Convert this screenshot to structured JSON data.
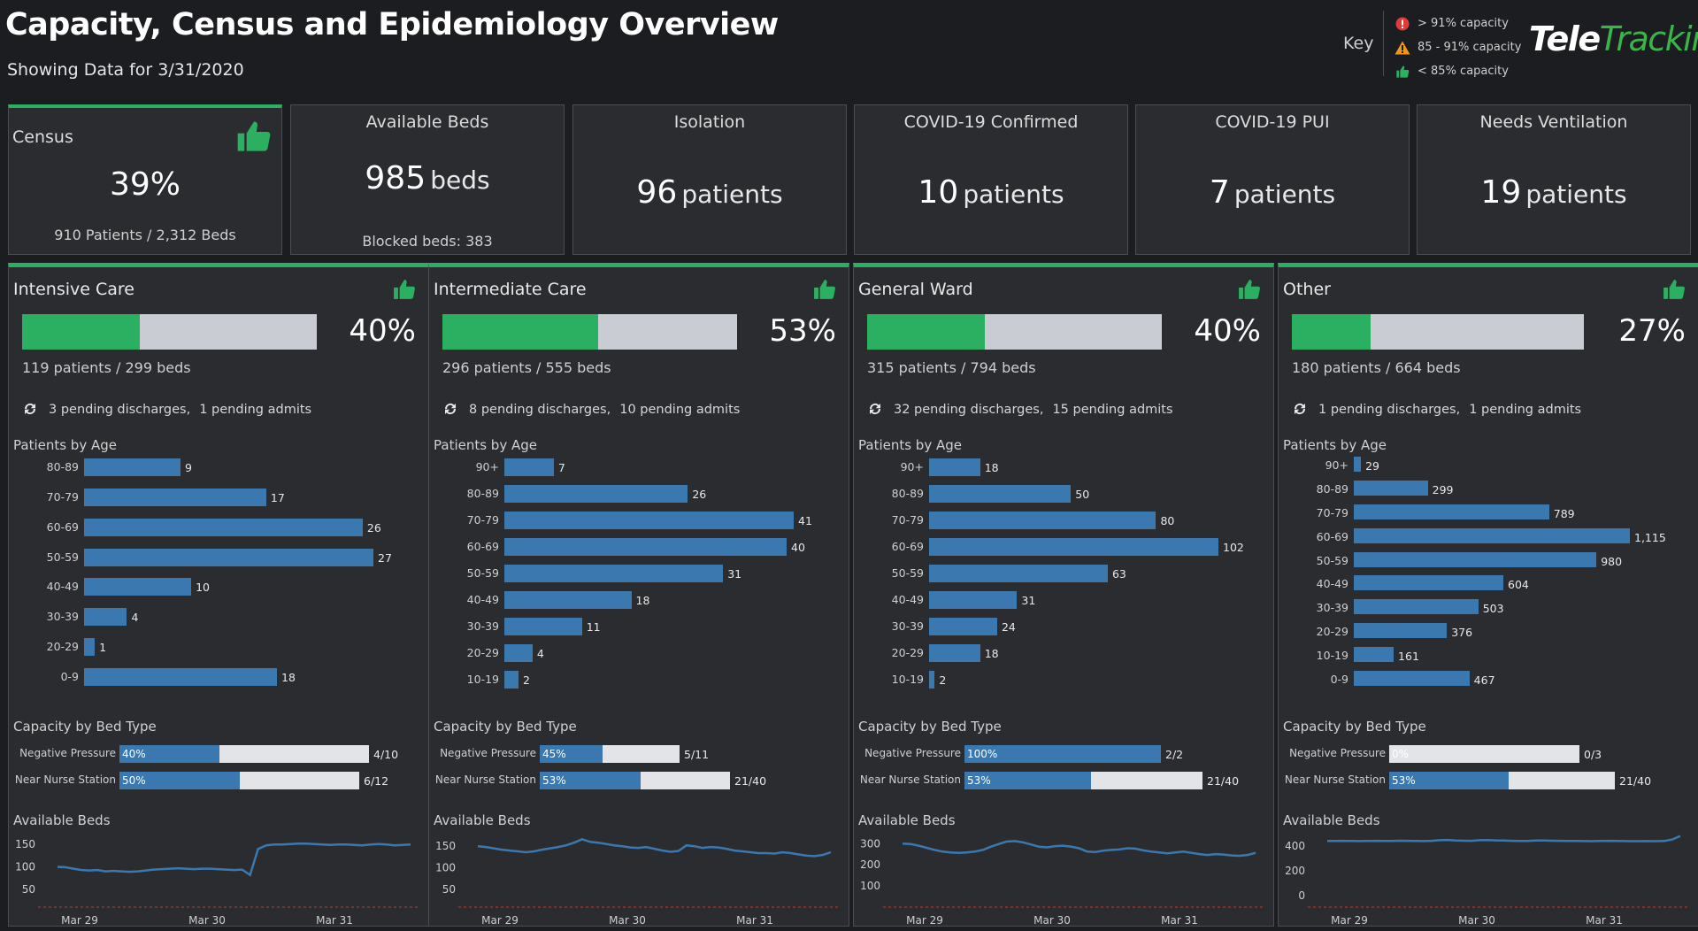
{
  "header": {
    "title": "Capacity, Census and Epidemiology Overview",
    "subtitle": "Showing Data for 3/31/2020"
  },
  "key": {
    "label": "Key",
    "items": [
      {
        "icon": "alert-circle-icon",
        "color": "#e03b3b",
        "text": "> 91% capacity"
      },
      {
        "icon": "warning-triangle-icon",
        "color": "#f0961e",
        "text": "85 - 91% capacity"
      },
      {
        "icon": "thumbs-up-icon",
        "color": "#2bb062",
        "text": "< 85% capacity"
      }
    ]
  },
  "logo": {
    "text_a": "Tele",
    "text_b": "Tracking"
  },
  "colors": {
    "accent": "#2bb062",
    "bar": "#3c78b0",
    "track": "#c9cdd3",
    "bg": "#1c1d20",
    "panel": "#2a2c30"
  },
  "kpis": [
    {
      "title": "Census",
      "value": "39%",
      "unit": "",
      "foot": "910 Patients / 2,312 Beds"
    },
    {
      "title": "Available Beds",
      "value": "985",
      "unit": "beds",
      "foot": "Blocked beds: 383"
    },
    {
      "title": "Isolation",
      "value": "96",
      "unit": "patients",
      "foot": ""
    },
    {
      "title": "COVID-19 Confirmed",
      "value": "10",
      "unit": "patients",
      "foot": ""
    },
    {
      "title": "COVID-19 PUI",
      "value": "7",
      "unit": "patients",
      "foot": ""
    },
    {
      "title": "Needs Ventilation",
      "value": "19",
      "unit": "patients",
      "foot": ""
    }
  ],
  "labels": {
    "age_title": "Patients by Age",
    "bed_type_title": "Capacity by Bed Type",
    "avail_title": "Available Beds"
  },
  "units": [
    {
      "name": "Intensive Care",
      "capacity": 0.4,
      "capacity_label": "40%",
      "census": "119 patients / 299 beds",
      "discharges": "3 pending discharges,",
      "admits": "1 pending admits",
      "age": [
        {
          "label": "80-89",
          "value": 9
        },
        {
          "label": "70-79",
          "value": 17
        },
        {
          "label": "60-69",
          "value": 26
        },
        {
          "label": "50-59",
          "value": 27
        },
        {
          "label": "40-49",
          "value": 10
        },
        {
          "label": "30-39",
          "value": 4
        },
        {
          "label": "20-29",
          "value": 1
        },
        {
          "label": "0-9",
          "value": 18
        }
      ],
      "bed_types": [
        {
          "label": "Negative Pressure",
          "pct": 0.4,
          "pct_label": "40%",
          "value": "4/10"
        },
        {
          "label": "Near Nurse Station",
          "pct": 0.5,
          "pct_label": "50%",
          "value": "6/12"
        }
      ],
      "avail": {
        "y_ticks": [
          "150",
          "100",
          "50"
        ],
        "tick_values": [
          150,
          100,
          50
        ],
        "ymin": 30,
        "ymax": 180,
        "x_ticks": [
          "Mar 29",
          "Mar 30",
          "Mar 31"
        ],
        "series": [
          100,
          99,
          96,
          93,
          92,
          93,
          90,
          91,
          90,
          89,
          90,
          92,
          94,
          95,
          96,
          97,
          96,
          95,
          96,
          96,
          95,
          94,
          93,
          94,
          82,
          140,
          148,
          150,
          150,
          151,
          152,
          152,
          151,
          150,
          149,
          150,
          150,
          149,
          148,
          150,
          151,
          150,
          148,
          149,
          150
        ]
      }
    },
    {
      "name": "Intermediate Care",
      "capacity": 0.53,
      "capacity_label": "53%",
      "census": "296 patients / 555 beds",
      "discharges": "8 pending discharges,",
      "admits": "10 pending admits",
      "age": [
        {
          "label": "90+",
          "value": 7
        },
        {
          "label": "80-89",
          "value": 26
        },
        {
          "label": "70-79",
          "value": 41
        },
        {
          "label": "60-69",
          "value": 40
        },
        {
          "label": "50-59",
          "value": 31
        },
        {
          "label": "40-49",
          "value": 18
        },
        {
          "label": "30-39",
          "value": 11
        },
        {
          "label": "20-29",
          "value": 4
        },
        {
          "label": "10-19",
          "value": 2
        }
      ],
      "bed_types": [
        {
          "label": "Negative Pressure",
          "pct": 0.45,
          "pct_label": "45%",
          "value": "5/11"
        },
        {
          "label": "Near Nurse Station",
          "pct": 0.53,
          "pct_label": "53%",
          "value": "21/40"
        }
      ],
      "avail": {
        "y_ticks": [
          "150",
          "100",
          "50"
        ],
        "tick_values": [
          150,
          100,
          50
        ],
        "ymin": 30,
        "ymax": 185,
        "x_ticks": [
          "Mar 29",
          "Mar 30",
          "Mar 31"
        ],
        "series": [
          150,
          148,
          145,
          142,
          140,
          138,
          136,
          138,
          142,
          145,
          148,
          152,
          158,
          166,
          160,
          158,
          155,
          152,
          150,
          147,
          146,
          148,
          144,
          140,
          137,
          139,
          152,
          150,
          146,
          148,
          147,
          144,
          140,
          138,
          136,
          134,
          134,
          133,
          136,
          134,
          131,
          128,
          127,
          130,
          136
        ]
      }
    },
    {
      "name": "General Ward",
      "capacity": 0.4,
      "capacity_label": "40%",
      "census": "315 patients / 794 beds",
      "discharges": "32 pending discharges,",
      "admits": "15 pending admits",
      "age": [
        {
          "label": "90+",
          "value": 18
        },
        {
          "label": "80-89",
          "value": 50
        },
        {
          "label": "70-79",
          "value": 80
        },
        {
          "label": "60-69",
          "value": 102
        },
        {
          "label": "50-59",
          "value": 63
        },
        {
          "label": "40-49",
          "value": 31
        },
        {
          "label": "30-39",
          "value": 24
        },
        {
          "label": "20-29",
          "value": 18
        },
        {
          "label": "10-19",
          "value": 2
        }
      ],
      "bed_types": [
        {
          "label": "Negative Pressure",
          "pct": 1.0,
          "pct_label": "100%",
          "value": "2/2"
        },
        {
          "label": "Near Nurse Station",
          "pct": 0.53,
          "pct_label": "53%",
          "value": "21/40"
        }
      ],
      "avail": {
        "y_ticks": [
          "300",
          "200",
          "100"
        ],
        "tick_values": [
          300,
          200,
          100
        ],
        "ymin": 40,
        "ymax": 360,
        "x_ticks": [
          "Mar 29",
          "Mar 30",
          "Mar 31"
        ],
        "series": [
          300,
          298,
          290,
          280,
          270,
          262,
          258,
          256,
          258,
          262,
          270,
          285,
          298,
          310,
          312,
          306,
          296,
          285,
          282,
          288,
          290,
          286,
          278,
          262,
          260,
          266,
          270,
          272,
          278,
          276,
          268,
          262,
          258,
          254,
          258,
          262,
          256,
          250,
          246,
          250,
          248,
          244,
          242,
          246,
          256
        ]
      }
    },
    {
      "name": "Other",
      "capacity": 0.27,
      "capacity_label": "27%",
      "census": "180 patients / 664 beds",
      "discharges": "1 pending discharges,",
      "admits": "1 pending admits",
      "age": [
        {
          "label": "90+",
          "value": 29
        },
        {
          "label": "80-89",
          "value": 299
        },
        {
          "label": "70-79",
          "value": 789
        },
        {
          "label": "60-69",
          "value": 1115,
          "value_label": "1,115"
        },
        {
          "label": "50-59",
          "value": 980
        },
        {
          "label": "40-49",
          "value": 604
        },
        {
          "label": "30-39",
          "value": 503
        },
        {
          "label": "20-29",
          "value": 376
        },
        {
          "label": "10-19",
          "value": 161
        },
        {
          "label": "0-9",
          "value": 467
        }
      ],
      "bed_types": [
        {
          "label": "Negative Pressure",
          "pct": 0.0,
          "pct_label": "0%",
          "value": "0/3"
        },
        {
          "label": "Near Nurse Station",
          "pct": 0.53,
          "pct_label": "53%",
          "value": "21/40"
        }
      ],
      "avail": {
        "y_ticks": [
          "400",
          "200",
          "0"
        ],
        "tick_values": [
          400,
          200,
          0
        ],
        "ymin": -20,
        "ymax": 520,
        "x_ticks": [
          "Mar 29",
          "Mar 30",
          "Mar 31"
        ],
        "series": [
          440,
          440,
          441,
          440,
          439,
          440,
          441,
          440,
          440,
          442,
          441,
          440,
          439,
          441,
          446,
          448,
          444,
          442,
          441,
          446,
          447,
          445,
          444,
          441,
          440,
          440,
          443,
          444,
          442,
          441,
          440,
          440,
          439,
          438,
          440,
          441,
          440,
          439,
          438,
          438,
          439,
          438,
          440,
          452,
          480
        ]
      }
    }
  ]
}
